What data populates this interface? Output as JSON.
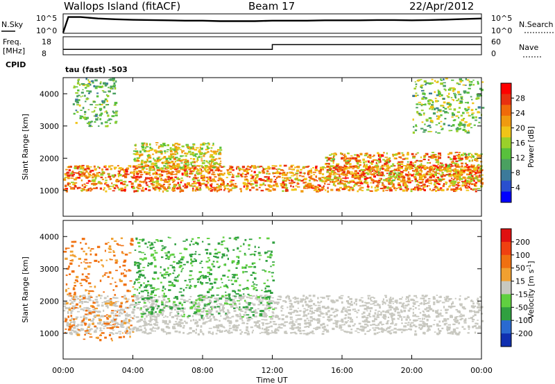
{
  "header": {
    "station": "Wallops Island (fitACF)",
    "beam": "Beam 17",
    "date": "22/Apr/2012"
  },
  "panel_top": {
    "left_label": "N.Sky",
    "right_label": "N.Search",
    "left_ticks": [
      "10^5",
      "10^0"
    ],
    "right_ticks": [
      "10^5",
      "10^0"
    ]
  },
  "panel_freq": {
    "left_label_1": "Freq.",
    "left_label_2": "[MHz]",
    "right_label": "Nave",
    "left_ticks": [
      "18",
      "8"
    ],
    "right_ticks": [
      "60",
      "0"
    ]
  },
  "cpid": {
    "label": "CPID",
    "mode": "tau (fast) -503"
  },
  "time_axis": {
    "label": "Time UT",
    "ticks": [
      "00:00",
      "04:00",
      "08:00",
      "12:00",
      "16:00",
      "20:00",
      "00:00"
    ]
  },
  "chart_data": [
    {
      "type": "line",
      "title": "N.Sky / N.Search",
      "x_range_hours": [
        0,
        24
      ],
      "ylabel": "N.Sky",
      "y2label": "N.Search",
      "scale": "log",
      "series": [
        {
          "name": "N.Sky",
          "color": "#000000",
          "x": [
            0,
            0.3,
            1,
            2,
            3,
            4,
            5,
            6,
            7,
            8,
            9,
            10,
            11,
            12,
            13,
            14,
            15,
            16,
            17,
            18,
            19,
            20,
            21,
            22,
            23,
            24
          ],
          "values": [
            1,
            20000,
            20000,
            8000,
            5000,
            3500,
            3000,
            2500,
            2000,
            2000,
            1500,
            1500,
            1500,
            2000,
            2000,
            2000,
            2500,
            2500,
            2500,
            3000,
            3000,
            2500,
            3000,
            4000,
            6000,
            8000
          ]
        }
      ]
    },
    {
      "type": "line",
      "title": "Freq. / Nave",
      "x_range_hours": [
        0,
        24
      ],
      "ylabel": "Freq. [MHz]",
      "y2label": "Nave",
      "ylim": [
        8,
        18
      ],
      "y2lim": [
        0,
        60
      ],
      "series": [
        {
          "name": "Freq.",
          "color": "#000000",
          "x": [
            0,
            12,
            12,
            24
          ],
          "values": [
            11,
            11,
            13.6,
            13.6
          ]
        }
      ]
    },
    {
      "type": "heatmap",
      "title": "Power",
      "x_range_hours": [
        0,
        24
      ],
      "ylabel": "Slant Range [km]",
      "xlabel": "Time UT",
      "ylim": [
        200,
        4500
      ],
      "yticks": [
        1000,
        2000,
        3000,
        4000
      ],
      "colorbar_label": "Power [dB]",
      "colorbar_ticks": [
        28,
        24,
        20,
        16,
        12,
        8,
        4
      ],
      "colors": [
        "#0000ff",
        "#2a4fcf",
        "#3c7a9a",
        "#4aa060",
        "#58c03c",
        "#9ad02a",
        "#f0c418",
        "#f09a10",
        "#f06a0a",
        "#e83010",
        "#ff0000"
      ],
      "features": [
        {
          "name": "main band",
          "time_h": [
            0,
            24
          ],
          "range_km": [
            1000,
            1800
          ],
          "power_db": [
            16,
            30
          ]
        },
        {
          "name": "morning patch",
          "time_h": [
            4,
            9
          ],
          "range_km": [
            1700,
            2500
          ],
          "power_db": [
            12,
            24
          ]
        },
        {
          "name": "evening band",
          "time_h": [
            15,
            24
          ],
          "range_km": [
            1300,
            2200
          ],
          "power_db": [
            14,
            30
          ]
        },
        {
          "name": "far scatter early",
          "time_h": [
            0.5,
            3
          ],
          "range_km": [
            3000,
            4500
          ],
          "power_db": [
            8,
            18
          ]
        },
        {
          "name": "far scatter late",
          "time_h": [
            20,
            24
          ],
          "range_km": [
            2800,
            4500
          ],
          "power_db": [
            8,
            20
          ]
        }
      ]
    },
    {
      "type": "heatmap",
      "title": "Velocity",
      "x_range_hours": [
        0,
        24
      ],
      "ylabel": "Slant Range [km]",
      "xlabel": "Time UT",
      "ylim": [
        200,
        4500
      ],
      "yticks": [
        1000,
        2000,
        3000,
        4000
      ],
      "colorbar_label": "Velocity [m s-1]",
      "colorbar_ticks": [
        200,
        100,
        50,
        15,
        -15,
        -50,
        -100,
        -200
      ],
      "colors": [
        "#1030b0",
        "#2a6ad0",
        "#30a040",
        "#60d040",
        "#c8c8c0",
        "#f0a030",
        "#f07010",
        "#f04010",
        "#e01010"
      ],
      "features": [
        {
          "name": "ground scatter band",
          "time_h": [
            0,
            24
          ],
          "range_km": [
            1000,
            2200
          ],
          "velocity": [
            -15,
            15
          ]
        },
        {
          "name": "positive patches",
          "time_h": [
            4,
            12
          ],
          "range_km": [
            1500,
            4000
          ],
          "velocity": [
            15,
            100
          ]
        },
        {
          "name": "negative patches",
          "time_h": [
            0,
            4
          ],
          "range_km": [
            800,
            4000
          ],
          "velocity": [
            -100,
            -15
          ]
        }
      ]
    }
  ]
}
